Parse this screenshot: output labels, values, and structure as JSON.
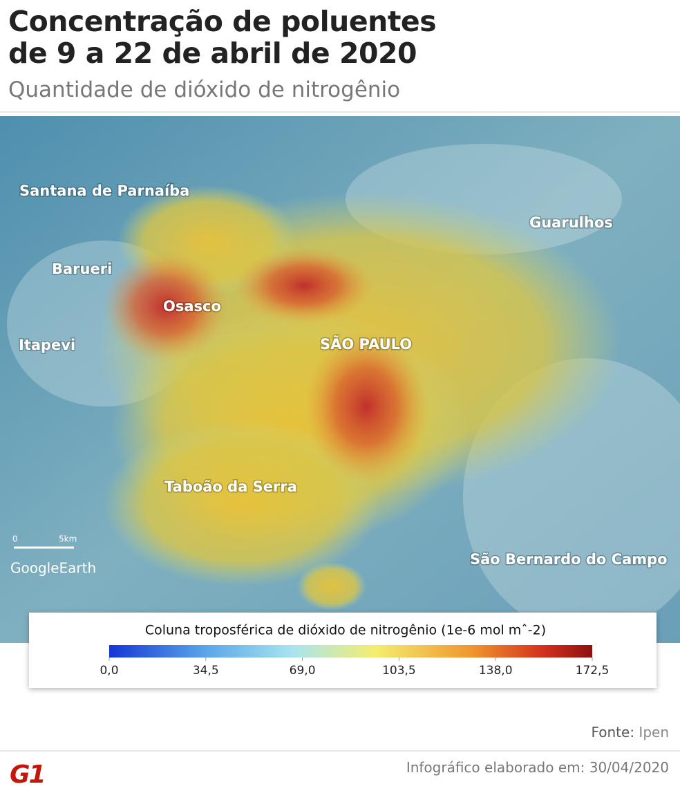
{
  "header": {
    "title_lines": [
      "Concentração de poluentes",
      "de 9 a 22 de abril de 2020"
    ],
    "subtitle": "Quantidade de dióxido de nitrogênio"
  },
  "map": {
    "labels": [
      "Santana de Parnaíba",
      "Guarulhos",
      "Barueri",
      "Osasco",
      "Itapevi",
      "SÃO PAULO",
      "Taboão da Serra",
      "São Bernardo do Campo"
    ],
    "scale_labels": [
      "0",
      "5km"
    ],
    "attribution": "GoogleEarth"
  },
  "legend": {
    "title": "Coluna troposférica de dióxido de nitrogênio (1e-6 mol mˆ-2)",
    "range": [
      0,
      172.5
    ],
    "ticks": [
      {
        "value": 0,
        "label": "0,0"
      },
      {
        "value": 34.5,
        "label": "34,5"
      },
      {
        "value": 69,
        "label": "69,0"
      },
      {
        "value": 103.5,
        "label": "103,5"
      },
      {
        "value": 138,
        "label": "138,0"
      },
      {
        "value": 172.5,
        "label": "172,5"
      }
    ]
  },
  "footer": {
    "source_label": "Fonte:",
    "source": "Ipen",
    "credit": "Infográfico elaborado em: 30/04/2020",
    "logo": "G1"
  }
}
